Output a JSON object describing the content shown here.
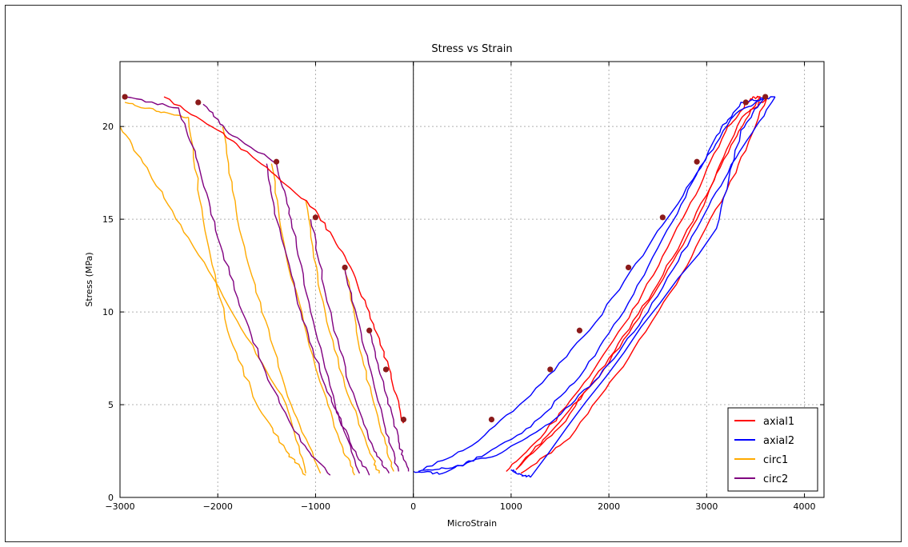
{
  "chart_data": {
    "type": "line",
    "title": "Stress vs Strain",
    "xlabel": "MicroStrain",
    "ylabel": "Stress (MPa)",
    "xlim": [
      -3000,
      4200
    ],
    "ylim": [
      0,
      23.5
    ],
    "xticks": [
      -3000,
      -2000,
      -1000,
      0,
      1000,
      2000,
      3000,
      4000
    ],
    "yticks": [
      0,
      5,
      10,
      15,
      20
    ],
    "xtick_labels": [
      "−3000",
      "−2000",
      "−1000",
      "0",
      "1000",
      "2000",
      "3000",
      "4000"
    ],
    "ytick_labels": [
      "0",
      "5",
      "10",
      "15",
      "20"
    ],
    "grid": true,
    "legend_position": "bottom-right",
    "series": [
      {
        "name": "axial1",
        "color": "#ff0000",
        "segments": [
          [
            [
              950,
              1.4
            ],
            [
              1300,
              3.2
            ],
            [
              1800,
              6.5
            ],
            [
              2300,
              10.5
            ],
            [
              2800,
              15.5
            ],
            [
              3200,
              19.8
            ],
            [
              3450,
              21.5
            ],
            [
              3550,
              21.6
            ]
          ],
          [
            [
              3550,
              21.6
            ],
            [
              3250,
              19
            ],
            [
              2900,
              15
            ],
            [
              2400,
              10.5
            ],
            [
              1900,
              6.5
            ],
            [
              1400,
              3.5
            ],
            [
              1050,
              1.5
            ]
          ],
          [
            [
              1050,
              1.5
            ],
            [
              1500,
              3.8
            ],
            [
              2000,
              7.5
            ],
            [
              2500,
              11.5
            ],
            [
              3000,
              16.3
            ],
            [
              3350,
              20.4
            ],
            [
              3620,
              21.6
            ]
          ],
          [
            [
              3620,
              21.6
            ],
            [
              3300,
              17.5
            ],
            [
              2800,
              12.5
            ],
            [
              2200,
              7.5
            ],
            [
              1600,
              3.2
            ],
            [
              1100,
              1.3
            ]
          ]
        ]
      },
      {
        "name": "axial2",
        "color": "#0000ff",
        "segments": [
          [
            [
              0,
              1.4
            ],
            [
              300,
              1.3
            ],
            [
              700,
              2.2
            ],
            [
              1200,
              3.8
            ],
            [
              1700,
              6.5
            ],
            [
              2200,
              10.5
            ],
            [
              2700,
              15.3
            ],
            [
              3100,
              19.5
            ],
            [
              3350,
              21.3
            ],
            [
              3700,
              21.6
            ]
          ],
          [
            [
              3700,
              21.6
            ],
            [
              3300,
              18.3
            ],
            [
              2900,
              14.5
            ],
            [
              2400,
              10
            ],
            [
              1900,
              6.5
            ],
            [
              1400,
              4
            ],
            [
              900,
              2.4
            ],
            [
              400,
              1.6
            ],
            [
              50,
              1.4
            ]
          ],
          [
            [
              100,
              1.5
            ],
            [
              600,
              2.8
            ],
            [
              1200,
              5.5
            ],
            [
              1800,
              9
            ],
            [
              2400,
              13.5
            ],
            [
              2900,
              17.5
            ],
            [
              3300,
              20.7
            ],
            [
              3600,
              21.6
            ]
          ],
          [
            [
              3600,
              21.6
            ],
            [
              3350,
              19.8
            ],
            [
              3100,
              14.5
            ],
            [
              1200,
              1.1
            ],
            [
              1050,
              1.3
            ],
            [
              1000,
              1.5
            ]
          ]
        ]
      },
      {
        "name": "circ1",
        "color": "#ffaa00",
        "segments": [
          [
            [
              -3000,
              20
            ],
            [
              -2700,
              17.5
            ],
            [
              -2300,
              14
            ],
            [
              -1800,
              9.5
            ],
            [
              -1300,
              5
            ],
            [
              -1100,
              1.3
            ]
          ],
          [
            [
              -2950,
              21.3
            ],
            [
              -2600,
              20.8
            ],
            [
              -2300,
              20.5
            ]
          ],
          [
            [
              -2300,
              20.5
            ],
            [
              -2150,
              15
            ],
            [
              -1900,
              9
            ],
            [
              -1600,
              5
            ],
            [
              -1300,
              2.5
            ],
            [
              -1100,
              1.2
            ]
          ],
          [
            [
              -1950,
              20
            ],
            [
              -1800,
              15
            ],
            [
              -1550,
              10
            ],
            [
              -1250,
              5
            ],
            [
              -950,
              1.3
            ]
          ],
          [
            [
              -1450,
              18
            ],
            [
              -1300,
              13
            ],
            [
              -1000,
              7
            ],
            [
              -750,
              3
            ],
            [
              -600,
              1.2
            ]
          ],
          [
            [
              -1100,
              16
            ],
            [
              -950,
              11
            ],
            [
              -700,
              6
            ],
            [
              -450,
              2.5
            ],
            [
              -350,
              1.3
            ]
          ],
          [
            [
              -700,
              12.5
            ],
            [
              -550,
              8
            ],
            [
              -350,
              4
            ],
            [
              -200,
              1.4
            ]
          ]
        ]
      },
      {
        "name": "circ2",
        "color": "#800080",
        "segments": [
          [
            [
              -2950,
              21.6
            ],
            [
              -2400,
              21
            ],
            [
              -2200,
              18
            ],
            [
              -2000,
              14
            ],
            [
              -1750,
              10
            ],
            [
              -1450,
              6
            ],
            [
              -1150,
              3
            ],
            [
              -850,
              1.2
            ]
          ],
          [
            [
              -2150,
              21.2
            ],
            [
              -1850,
              19.5
            ],
            [
              -1400,
              18
            ],
            [
              -1250,
              15
            ],
            [
              -1050,
              10
            ],
            [
              -800,
              5
            ],
            [
              -550,
              1.3
            ]
          ],
          [
            [
              -1500,
              18
            ],
            [
              -1400,
              15
            ],
            [
              -1150,
              10
            ],
            [
              -900,
              6
            ],
            [
              -650,
              3
            ],
            [
              -450,
              1.2
            ]
          ],
          [
            [
              -1050,
              15
            ],
            [
              -900,
              11
            ],
            [
              -650,
              6
            ],
            [
              -400,
              2.5
            ],
            [
              -250,
              1.3
            ]
          ],
          [
            [
              -700,
              12.3
            ],
            [
              -500,
              8
            ],
            [
              -300,
              4
            ],
            [
              -150,
              1.4
            ]
          ],
          [
            [
              -450,
              9
            ],
            [
              -300,
              6
            ],
            [
              -150,
              3
            ],
            [
              -50,
              1.4
            ]
          ]
        ]
      },
      {
        "name": "",
        "color": "#ff0000",
        "segments": [
          [
            [
              -2550,
              21.6
            ],
            [
              -2000,
              19.8
            ],
            [
              -1500,
              17.8
            ],
            [
              -1000,
              15.5
            ],
            [
              -700,
              13
            ],
            [
              -450,
              10
            ],
            [
              -250,
              7
            ],
            [
              -100,
              4
            ]
          ]
        ]
      }
    ],
    "peak_markers": {
      "color": "#8b1a1a",
      "points": [
        [
          -2950,
          21.6
        ],
        [
          -2200,
          21.3
        ],
        [
          -1400,
          18.1
        ],
        [
          -1000,
          15.1
        ],
        [
          -700,
          12.4
        ],
        [
          -450,
          9
        ],
        [
          -280,
          6.9
        ],
        [
          -100,
          4.2
        ],
        [
          800,
          4.2
        ],
        [
          1400,
          6.9
        ],
        [
          1700,
          9
        ],
        [
          2200,
          12.4
        ],
        [
          2550,
          15.1
        ],
        [
          2900,
          18.1
        ],
        [
          3400,
          21.3
        ],
        [
          3600,
          21.6
        ]
      ]
    }
  }
}
